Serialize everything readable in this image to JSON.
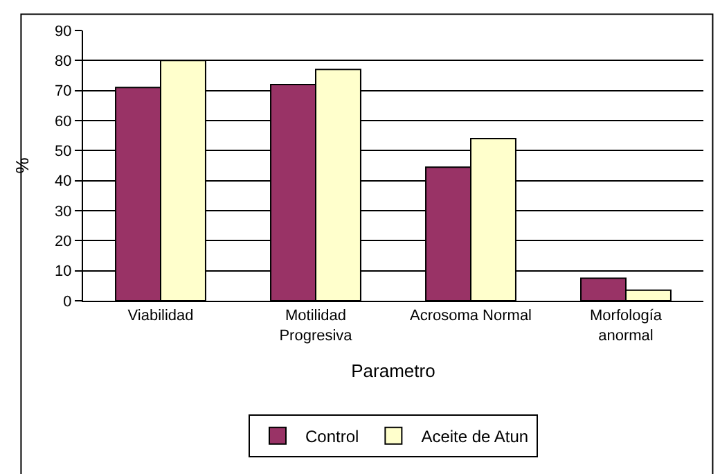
{
  "chart_data": {
    "type": "bar",
    "xlabel": "Parametro",
    "ylabel": "%",
    "categories": [
      "Viabilidad",
      "Motilidad\nProgresiva",
      "Acrosoma Normal",
      "Morfología\nanormal"
    ],
    "series": [
      {
        "name": "Control",
        "color": "#993366",
        "values": [
          71,
          72,
          44.5,
          7.5
        ]
      },
      {
        "name": "Aceite de Atun",
        "color": "#ffffcc",
        "values": [
          80,
          77,
          54,
          3.5
        ]
      }
    ],
    "ylim": [
      0,
      90
    ],
    "yticks": [
      0,
      10,
      20,
      30,
      40,
      50,
      60,
      70,
      80,
      90
    ],
    "grid": "y",
    "legend": "bottom"
  }
}
